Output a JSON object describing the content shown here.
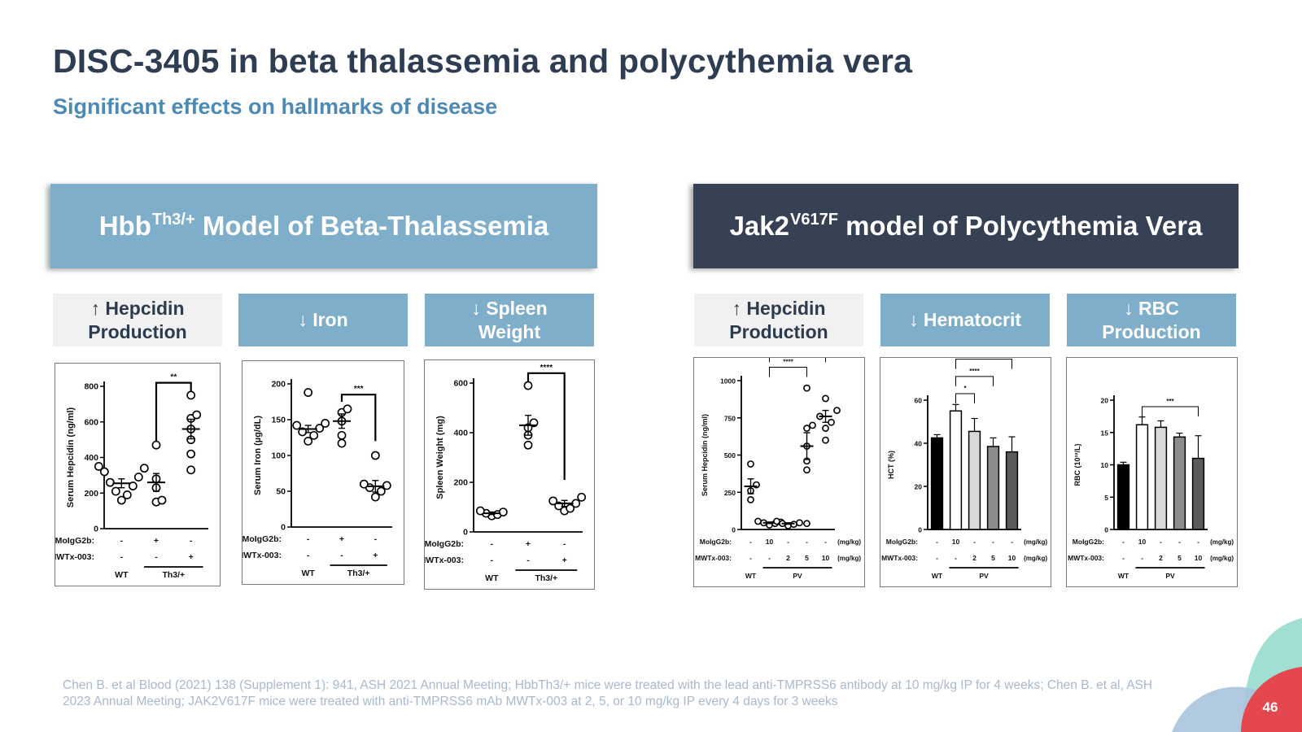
{
  "slide": {
    "title": "DISC-3405 in beta thalassemia and polycythemia vera",
    "subtitle": "Significant effects on hallmarks of disease",
    "page_number": "46"
  },
  "colors": {
    "title": "#2f3d52",
    "subtitle": "#4c8ab5",
    "banner_light": "#7faecb",
    "banner_dark": "#364154",
    "tile_grey": "#f1f1f1",
    "footnote": "#a9b9cc",
    "accent_red": "#e5474f",
    "accent_teal": "#8fd9c9"
  },
  "banners": {
    "bt": {
      "pre": "Hbb",
      "sup": "Th3/+",
      "post": " Model of Beta-Thalassemia"
    },
    "pv": {
      "pre": "Jak2",
      "sup": "V617F",
      "post": " model of Polycythemia Vera"
    }
  },
  "tiles": {
    "bt_hepcidin": {
      "l1": "↑ Hepcidin",
      "l2": "Production"
    },
    "bt_iron": {
      "l1": "↓ Iron"
    },
    "bt_spleen": {
      "l1": "↓ Spleen",
      "l2": "Weight"
    },
    "pv_hepcidin": {
      "l1": "↑ Hepcidin",
      "l2": "Production"
    },
    "pv_hct": {
      "l1": "↓ Hematocrit"
    },
    "pv_rbc": {
      "l1": "↓ RBC",
      "l2": "Production"
    }
  },
  "footnote": "Chen B. et al Blood (2021) 138 (Supplement 1): 941, ASH 2021 Annual Meeting; HbbTh3/+ mice were treated with the lead anti-TMPRSS6 antibody at 10 mg/kg IP for 4 weeks; Chen B. et al, ASH 2023 Annual Meeting; JAK2V617F mice were treated with anti-TMPRSS6 mAb MWTx-003 at 2, 5, or 10 mg/kg IP every 4 days for 3 weeks",
  "chart_data": [
    {
      "id": "bt_hepcidin",
      "type": "scatter",
      "ylabel": "Serum Hepcidin (ng/ml)",
      "ylim": [
        0,
        800
      ],
      "yticks": [
        0,
        200,
        400,
        600,
        800
      ],
      "row_labels": [
        "MoIgG2b:",
        "MWTx-003:"
      ],
      "row_values": [
        [
          "-",
          "+",
          "-"
        ],
        [
          "-",
          "-",
          "+"
        ]
      ],
      "groups": [
        {
          "label": "WT",
          "members": [
            0
          ]
        },
        {
          "label": "Th3/+",
          "members": [
            1,
            2
          ]
        }
      ],
      "series": [
        {
          "points": [
            160,
            190,
            210,
            240,
            260,
            290,
            320,
            340,
            350
          ],
          "mean": 255,
          "sem": 25
        },
        {
          "points": [
            150,
            160,
            230,
            280,
            470
          ],
          "mean": 260,
          "sem": 50
        },
        {
          "points": [
            330,
            420,
            500,
            560,
            620,
            640,
            750
          ],
          "mean": 560,
          "sem": 55
        }
      ],
      "brackets": [
        {
          "from": 1,
          "to": 2,
          "y": 820,
          "label": "**",
          "drop_to": 770,
          "left_drop_to": 490
        }
      ]
    },
    {
      "id": "bt_iron",
      "type": "scatter",
      "ylabel": "Serum Iron (µg/dL)",
      "ylim": [
        0,
        200
      ],
      "yticks": [
        0,
        50,
        100,
        150,
        200
      ],
      "row_labels": [
        "MoIgG2b:",
        "MWTx-003:"
      ],
      "row_values": [
        [
          "-",
          "+",
          "-"
        ],
        [
          "-",
          "-",
          "+"
        ]
      ],
      "groups": [
        {
          "label": "WT",
          "members": [
            0
          ]
        },
        {
          "label": "Th3/+",
          "members": [
            1,
            2
          ]
        }
      ],
      "series": [
        {
          "points": [
            120,
            128,
            133,
            138,
            142,
            145,
            188
          ],
          "mean": 137,
          "sem": 5
        },
        {
          "points": [
            117,
            128,
            148,
            160,
            165
          ],
          "mean": 148,
          "sem": 10
        },
        {
          "points": [
            42,
            50,
            55,
            58,
            60,
            100
          ],
          "mean": 57,
          "sem": 8
        }
      ],
      "brackets": [
        {
          "from": 1,
          "to": 2,
          "y": 185,
          "label": "***",
          "drop_to": 120,
          "left_drop_to": 175
        }
      ]
    },
    {
      "id": "bt_spleen",
      "type": "scatter",
      "ylabel": "Spleen Weight (mg)",
      "ylim": [
        0,
        600
      ],
      "yticks": [
        0,
        200,
        400,
        600
      ],
      "row_labels": [
        "MoIgG2b:",
        "MWTx-003:"
      ],
      "row_values": [
        [
          "-",
          "+",
          "-"
        ],
        [
          "-",
          "-",
          "+"
        ]
      ],
      "groups": [
        {
          "label": "WT",
          "members": [
            0
          ]
        },
        {
          "label": "Th3/+",
          "members": [
            1,
            2
          ]
        }
      ],
      "series": [
        {
          "points": [
            65,
            70,
            75,
            80,
            85
          ],
          "mean": 75,
          "sem": 5
        },
        {
          "points": [
            350,
            390,
            420,
            440,
            590
          ],
          "mean": 430,
          "sem": 40
        },
        {
          "points": [
            85,
            95,
            105,
            115,
            125,
            140
          ],
          "mean": 115,
          "sem": 12
        }
      ],
      "brackets": [
        {
          "from": 1,
          "to": 2,
          "y": 640,
          "label": "****",
          "drop_to": 210,
          "left_drop_to": 605
        }
      ]
    },
    {
      "id": "pv_hepcidin",
      "type": "scatter",
      "ylabel": "Serum Hepcidin (ng/ml)",
      "ylim": [
        0,
        1000
      ],
      "yticks": [
        0,
        250,
        500,
        750,
        1000
      ],
      "units": "(mg/kg)",
      "row_labels": [
        "MoIgG2b:",
        "MWTx-003:"
      ],
      "row_values": [
        [
          "-",
          "10",
          "-",
          "-",
          "-"
        ],
        [
          "-",
          "-",
          "2",
          "5",
          "10"
        ]
      ],
      "groups": [
        {
          "label": "WT",
          "members": [
            0
          ]
        },
        {
          "label": "PV",
          "members": [
            1,
            2,
            3,
            4
          ]
        }
      ],
      "series": [
        {
          "points": [
            200,
            260,
            300,
            440
          ],
          "mean": 290,
          "sem": 50
        },
        {
          "points": [
            30,
            40,
            45,
            50,
            55
          ],
          "mean": 45,
          "sem": 5
        },
        {
          "points": [
            25,
            35,
            40,
            45,
            55
          ],
          "mean": 40,
          "sem": 5
        },
        {
          "points": [
            40,
            400,
            460,
            560,
            680,
            700,
            950
          ],
          "mean": 560,
          "sem": 90
        },
        {
          "points": [
            600,
            680,
            720,
            760,
            800,
            880
          ],
          "mean": 760,
          "sem": 40
        }
      ],
      "brackets": [
        {
          "from": 1,
          "to": 3,
          "y": 1090,
          "label": "****"
        },
        {
          "from": 1,
          "to": 4,
          "y": 1190,
          "label": "****"
        }
      ]
    },
    {
      "id": "pv_hct",
      "type": "bar",
      "ylabel": "HCT (%)",
      "ylim": [
        0,
        60
      ],
      "yticks": [
        0,
        20,
        40,
        60
      ],
      "units": "(mg/kg)",
      "row_labels": [
        "MoIgG2b:",
        "MWTx-003:"
      ],
      "row_values": [
        [
          "-",
          "10",
          "-",
          "-",
          "-"
        ],
        [
          "-",
          "-",
          "2",
          "5",
          "10"
        ]
      ],
      "groups": [
        {
          "label": "WT",
          "members": [
            0
          ]
        },
        {
          "label": "PV",
          "members": [
            1,
            2,
            3,
            4
          ]
        }
      ],
      "values": [
        42.5,
        55,
        45.5,
        38.5,
        36
      ],
      "errors": [
        1.5,
        3,
        6,
        4,
        7
      ],
      "bar_colors": [
        "#000000",
        "#ffffff",
        "#d9d9d9",
        "#8c8c8c",
        "#5a5a5a"
      ],
      "brackets": [
        {
          "from": 1,
          "to": 2,
          "y": 63,
          "label": "*"
        },
        {
          "from": 1,
          "to": 3,
          "y": 71,
          "label": "****"
        },
        {
          "from": 1,
          "to": 4,
          "y": 79,
          "label": "****"
        }
      ]
    },
    {
      "id": "pv_rbc",
      "type": "bar",
      "ylabel": "RBC (10¹²/L)",
      "ylim": [
        0,
        20
      ],
      "yticks": [
        0,
        5,
        10,
        15,
        20
      ],
      "units": "(mg/kg)",
      "row_labels": [
        "MoIgG2b:",
        "MWTx-003:"
      ],
      "row_values": [
        [
          "-",
          "10",
          "-",
          "-",
          "-"
        ],
        [
          "-",
          "-",
          "2",
          "5",
          "10"
        ]
      ],
      "groups": [
        {
          "label": "WT",
          "members": [
            0
          ]
        },
        {
          "label": "PV",
          "members": [
            1,
            2,
            3,
            4
          ]
        }
      ],
      "values": [
        10,
        16.2,
        15.8,
        14.3,
        11
      ],
      "errors": [
        0.4,
        1.2,
        1,
        0.6,
        3.5
      ],
      "bar_colors": [
        "#000000",
        "#ffffff",
        "#d9d9d9",
        "#8c8c8c",
        "#5a5a5a"
      ],
      "brackets": [
        {
          "from": 1,
          "to": 4,
          "y": 19,
          "label": "***"
        }
      ]
    }
  ]
}
